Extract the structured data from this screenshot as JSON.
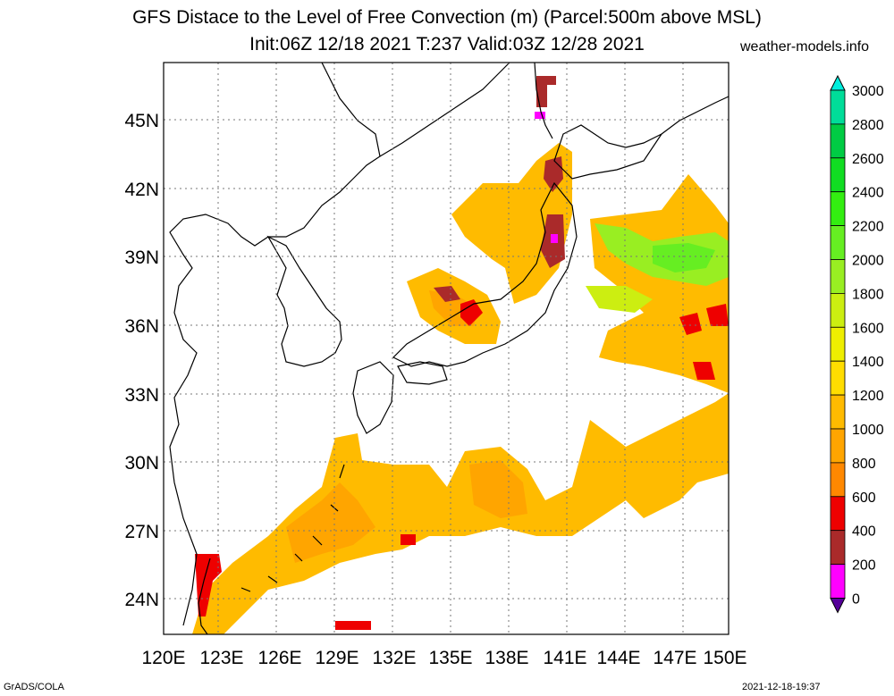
{
  "header": {
    "title_line1": "GFS Distace to the Level of Free Convection (m) (Parcel:500m above MSL)",
    "title_line2": "Init:06Z 12/18 2021 T:237 Valid:03Z 12/28 2021",
    "site": "weather-models.info"
  },
  "axes": {
    "lat_labels": [
      "45N",
      "42N",
      "39N",
      "36N",
      "33N",
      "30N",
      "27N",
      "24N"
    ],
    "lon_labels": [
      "120E",
      "123E",
      "126E",
      "129E",
      "132E",
      "135E",
      "138E",
      "141E",
      "144E",
      "147E",
      "150E"
    ]
  },
  "colorbar": {
    "labels": [
      "3000",
      "2800",
      "2600",
      "2400",
      "2200",
      "2000",
      "1800",
      "1600",
      "1400",
      "1200",
      "1000",
      "800",
      "600",
      "400",
      "200",
      "0"
    ],
    "colors": [
      "#00eedd",
      "#00dd99",
      "#00cc44",
      "#11dd22",
      "#33ee11",
      "#66ee22",
      "#99ee22",
      "#ccee11",
      "#eeee00",
      "#ffdd00",
      "#ffbb00",
      "#ffa500",
      "#ff8800",
      "#ee0000",
      "#aa2a2a",
      "#ff00ff",
      "#550099"
    ]
  },
  "footer": {
    "left": "GrADS/COLA",
    "right": "2021-12-18-19:37"
  }
}
